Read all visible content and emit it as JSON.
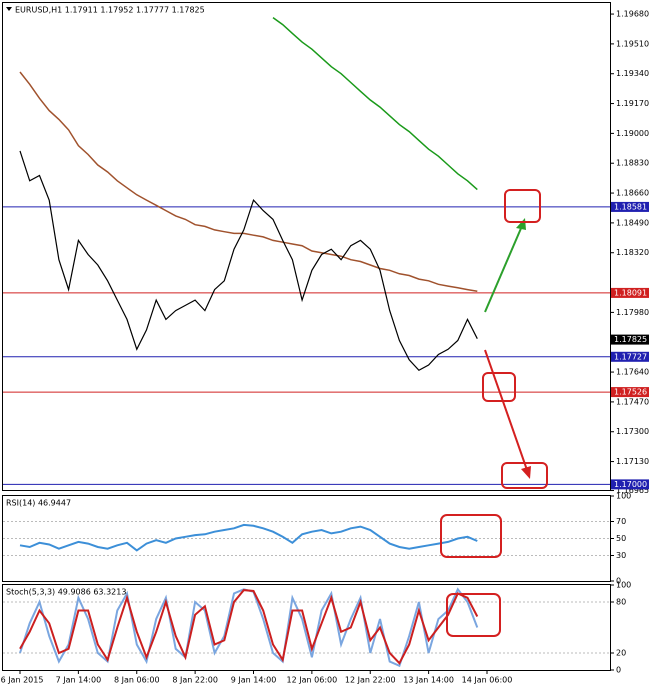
{
  "chart_data": [
    {
      "type": "line",
      "title": "EURUSD,H1  1.17911 1.17952 1.17777 1.17825",
      "categories": [
        "6 Jan 2015",
        null,
        null,
        null,
        null,
        null,
        "7 Jan 14:00",
        null,
        null,
        null,
        null,
        null,
        "8 Jan 06:00",
        null,
        null,
        null,
        null,
        null,
        "8 Jan 22:00",
        null,
        null,
        null,
        null,
        null,
        "9 Jan 14:00",
        null,
        null,
        null,
        null,
        null,
        "12 Jan 06:00",
        null,
        null,
        null,
        null,
        null,
        "12 Jan 22:00",
        null,
        null,
        null,
        null,
        null,
        "13 Jan 14:00",
        null,
        null,
        null,
        null,
        null,
        "14 Jan 06:00"
      ],
      "values": [
        1.189,
        1.1873,
        1.1876,
        1.1862,
        1.1828,
        1.1811,
        1.1839,
        1.1831,
        1.1825,
        1.1816,
        1.1805,
        1.1794,
        1.1777,
        1.1788,
        1.1805,
        1.1794,
        1.1799,
        1.1802,
        1.1805,
        1.1799,
        1.1811,
        1.1816,
        1.1834,
        1.1845,
        1.1862,
        1.1856,
        1.1851,
        1.1839,
        1.1828,
        1.1805,
        1.1822,
        1.1831,
        1.1834,
        1.1828,
        1.1836,
        1.1839,
        1.1834,
        1.1822,
        1.1799,
        1.1782,
        1.1771,
        1.1765,
        1.1768,
        1.1774,
        1.1777,
        1.1782,
        1.1794,
        1.1783,
        null
      ],
      "color": "#000000",
      "overlays": [
        {
          "color": "#a0522d",
          "values": [
            1.1935,
            1.1928,
            1.192,
            1.1913,
            1.1908,
            1.1902,
            1.1893,
            1.1888,
            1.1882,
            1.1878,
            1.1873,
            1.1869,
            1.1865,
            1.1862,
            1.1859,
            1.1856,
            1.1853,
            1.1851,
            1.1848,
            1.1847,
            1.1845,
            1.1844,
            1.1843,
            1.1843,
            1.1842,
            1.1841,
            1.1839,
            1.1838,
            1.1837,
            1.1836,
            1.1833,
            1.1832,
            1.1831,
            1.183,
            1.1828,
            1.1827,
            1.1825,
            1.1823,
            1.1822,
            1.182,
            1.1819,
            1.1817,
            1.1816,
            1.1814,
            1.1813,
            1.1812,
            1.1811,
            1.181,
            null
          ]
        },
        {
          "color": "#1a9a1a",
          "values": [
            null,
            null,
            null,
            null,
            null,
            null,
            null,
            null,
            null,
            null,
            null,
            null,
            null,
            null,
            null,
            null,
            null,
            null,
            null,
            null,
            null,
            null,
            null,
            null,
            null,
            null,
            1.1966,
            1.1962,
            1.1957,
            1.1952,
            1.1948,
            1.1943,
            1.1938,
            1.1934,
            1.1929,
            1.1924,
            1.1919,
            1.1915,
            1.191,
            1.1905,
            1.1901,
            1.1896,
            1.1891,
            1.1887,
            1.1882,
            1.1877,
            1.1873,
            1.1868,
            null
          ]
        }
      ],
      "ylim": [
        1.16968,
        1.19743
      ],
      "yticks": [
        {
          "value": 1.1968,
          "label": "1.19680"
        },
        {
          "value": 1.1951,
          "label": "1.19510"
        },
        {
          "value": 1.1934,
          "label": "1.19340"
        },
        {
          "value": 1.1917,
          "label": "1.19170"
        },
        {
          "value": 1.19,
          "label": "1.19000"
        },
        {
          "value": 1.1883,
          "label": "1.18830"
        },
        {
          "value": 1.1866,
          "label": "1.18660"
        },
        {
          "value": 1.1849,
          "label": "1.18490"
        },
        {
          "value": 1.1832,
          "label": "1.18320"
        },
        {
          "value": 1.1798,
          "label": "1.17980"
        },
        {
          "value": 1.1764,
          "label": "1.17640"
        },
        {
          "value": 1.1747,
          "label": "1.17470"
        },
        {
          "value": 1.173,
          "label": "1.17300"
        },
        {
          "value": 1.1713,
          "label": "1.17130"
        },
        1.16965
      ],
      "levels": [
        {
          "value": 1.18581,
          "label": "1.18581",
          "color": "#2020b0"
        },
        {
          "value": 1.18091,
          "label": "1.18091",
          "color": "#d02020"
        },
        {
          "value": 1.17825,
          "label": "1.17825",
          "color": "#000000"
        },
        {
          "value": 1.17727,
          "label": "1.17727",
          "color": "#2020b0"
        },
        {
          "value": 1.17526,
          "label": "1.17526",
          "color": "#d02020"
        },
        {
          "value": 1.17,
          "label": "1.17000",
          "color": "#2020b0"
        }
      ]
    },
    {
      "type": "line",
      "title": "RSI(14) 46.9447",
      "color": "#3c8fd8",
      "values": [
        42,
        40,
        45,
        43,
        38,
        42,
        46,
        44,
        40,
        38,
        42,
        45,
        36,
        44,
        48,
        45,
        50,
        52,
        54,
        55,
        58,
        60,
        62,
        66,
        65,
        62,
        58,
        52,
        45,
        55,
        58,
        60,
        56,
        58,
        62,
        64,
        60,
        52,
        44,
        40,
        38,
        40,
        42,
        44,
        46,
        50,
        52,
        47,
        null
      ],
      "ylim": [
        0,
        100
      ],
      "yticks": [
        100,
        70,
        50,
        30,
        0
      ]
    },
    {
      "type": "line",
      "title": "Stoch(5,3,3) 49.9086 63.3213",
      "overlays": [
        {
          "color": "#7aa6e0",
          "values": [
            20,
            55,
            80,
            40,
            10,
            30,
            85,
            60,
            20,
            10,
            70,
            90,
            30,
            10,
            60,
            85,
            25,
            15,
            80,
            70,
            20,
            40,
            90,
            95,
            92,
            60,
            20,
            10,
            85,
            60,
            15,
            70,
            90,
            30,
            60,
            85,
            20,
            60,
            10,
            5,
            40,
            80,
            20,
            60,
            70,
            95,
            80,
            50,
            null
          ]
        },
        {
          "color": "#cc1f1f",
          "values": [
            25,
            45,
            70,
            55,
            20,
            25,
            70,
            70,
            30,
            12,
            50,
            85,
            45,
            15,
            45,
            80,
            40,
            15,
            65,
            75,
            30,
            35,
            80,
            94,
            93,
            70,
            30,
            12,
            70,
            70,
            25,
            55,
            85,
            45,
            50,
            80,
            35,
            50,
            20,
            8,
            30,
            70,
            35,
            50,
            65,
            90,
            85,
            63,
            null
          ]
        }
      ],
      "ylim": [
        0,
        100
      ],
      "yticks": [
        100,
        80,
        20,
        0
      ]
    }
  ]
}
